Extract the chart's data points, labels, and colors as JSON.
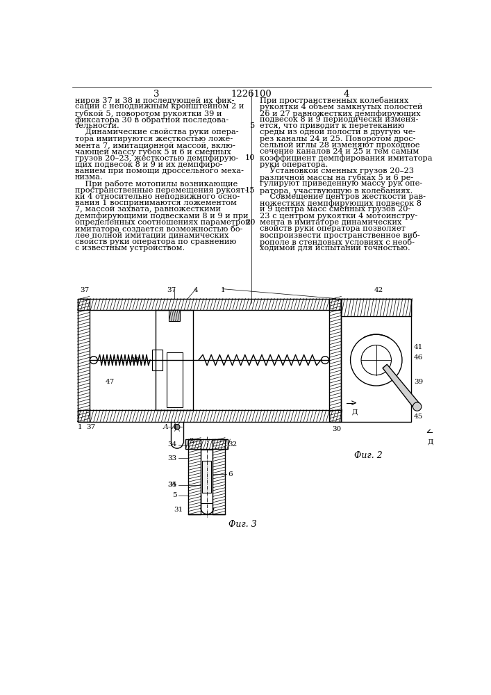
{
  "page_num_left": "3",
  "page_num_center": "1226100",
  "page_num_right": "4",
  "col1_lines": [
    "ниров 37 и 38 и последующей их фик-",
    "сации с неподвижным кронштейном 2 и",
    "губкой 5, поворотом рукоятки 39 и",
    "фиксатора 30 в обратной последова-",
    "тельности.",
    "    Динамические свойства руки опера-",
    "тора имитируются жесткостью ложе-",
    "мента 7, имитационной массой, вклю-",
    "чающей массу губок 5 и 6 и сменных",
    "грузов 20–23, жесткостью демпфирую-",
    "щих подвесок 8 и 9 и их демпфиро-",
    "ванием при помощи дроссельного меха-",
    "низма.",
    "    При работе мотопилы возникающие",
    "пространственные перемещения рукоят-",
    "ки 4 относительно неподвижного осно-",
    "вания 1 воспринимаются ложементом",
    "7, массой захвата, равножесткими",
    "демпфирующими подвесками 8 и 9 и при",
    "определенных соотношениях параметров",
    "имитатора создается возможностью бо-",
    "лее полной имитации динамических",
    "свойств руки оператора по сравнению",
    "с известным устройством."
  ],
  "col2_lines_numbered": [
    [
      "",
      "При пространственных колебаниях"
    ],
    [
      "",
      "рукоятки 4 объем замкнутых полостей"
    ],
    [
      "",
      "26 и 27 равножестких демпфирующих"
    ],
    [
      "",
      "подвесок 8 и 9 периодически изменя-"
    ],
    [
      "5",
      "ется, что приводит к перетеканию"
    ],
    [
      "",
      "среды из одной полости в другую че-"
    ],
    [
      "",
      "рез каналы 24 и 25. Поворотом дрос-"
    ],
    [
      "",
      "сельной иглы 28 изменяют проходное"
    ],
    [
      "",
      "сечение каналов 24 и 25 и тем самым"
    ],
    [
      "10",
      "коэффициент демпфирования имитатора"
    ],
    [
      "",
      "руки оператора."
    ],
    [
      "",
      "    Установкой сменных грузов 20–23"
    ],
    [
      "",
      "различной массы на губках 5 и 6 ре-"
    ],
    [
      "",
      "гулируют приведенную массу рук опе-"
    ],
    [
      "15",
      "ратора, участвующую в колебаниях."
    ],
    [
      "",
      "    Совмещение центров жесткости рав-"
    ],
    [
      "",
      "ножестких демпфирующих подвесок 8"
    ],
    [
      "",
      "и 9 центра масс сменных грузов 20-"
    ],
    [
      "",
      "23 с центром рукоятки 4 мотоинстру-"
    ],
    [
      "20",
      "мента в имитаторе динамических"
    ],
    [
      "",
      "свойств руки оператора позволяет"
    ],
    [
      "",
      "воспроизвести пространственное виб-"
    ],
    [
      "",
      "рополе в стендовых условиях с необ-"
    ],
    [
      "",
      "ходимой для испытаний точностью."
    ]
  ],
  "bg_color": "#ffffff",
  "text_color": "#000000",
  "line_color": "#000000",
  "font_size_body": 8.2,
  "font_size_header": 9.5,
  "font_size_label": 7.5
}
